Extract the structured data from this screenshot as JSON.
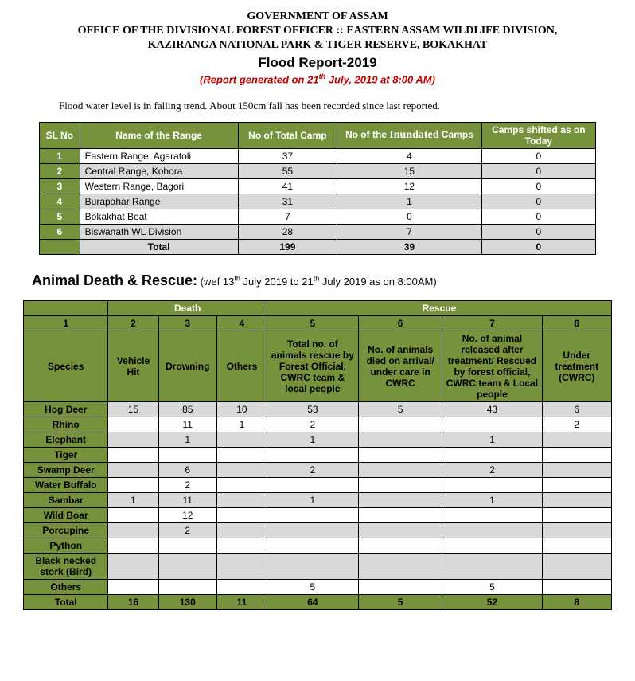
{
  "header": {
    "line1": "GOVERNMENT OF ASSAM",
    "line2": "OFFICE OF THE DIVISIONAL FOREST OFFICER :: EASTERN ASSAM WILDLIFE DIVISION,",
    "line3": "KAZIRANGA NATIONAL PARK & TIGER RESERVE, BOKAKHAT",
    "title": "Flood Report-2019",
    "subtitle_pre": "(Report generated on 21",
    "subtitle_sup": "th",
    "subtitle_post": " July, 2019 at 8:00 AM)"
  },
  "status": "Flood water level is in falling trend. About 150cm fall has been recorded since last reported.",
  "camp": {
    "headers": {
      "sl": "SL No",
      "name": "Name of the Range",
      "total": "No of Total Camp",
      "inundated_pre": "No of the ",
      "inundated_b": "Inundated",
      "inundated_post": " Camps",
      "shifted": "Camps shifted as on Today"
    },
    "rows": [
      {
        "sl": "1",
        "name": "Eastern Range, Agaratoli",
        "total": "37",
        "inun": "4",
        "shift": "0"
      },
      {
        "sl": "2",
        "name": "Central Range, Kohora",
        "total": "55",
        "inun": "15",
        "shift": "0"
      },
      {
        "sl": "3",
        "name": "Western Range, Bagori",
        "total": "41",
        "inun": "12",
        "shift": "0"
      },
      {
        "sl": "4",
        "name": "Burapahar Range",
        "total": "31",
        "inun": "1",
        "shift": "0"
      },
      {
        "sl": "5",
        "name": "Bokakhat Beat",
        "total": "7",
        "inun": "0",
        "shift": "0"
      },
      {
        "sl": "6",
        "name": "Biswanath WL Division",
        "total": "28",
        "inun": "7",
        "shift": "0"
      }
    ],
    "total": {
      "label": "Total",
      "total": "199",
      "inun": "39",
      "shift": "0"
    }
  },
  "section": {
    "title": "Animal Death & Rescue:",
    "sub_pre": " (wef 13",
    "sub_sup1": "th",
    "sub_mid": " July 2019 to 21",
    "sub_sup2": "th",
    "sub_post": " July 2019 as on 8:00AM)"
  },
  "animal": {
    "group_headers": {
      "blank": "",
      "death": "Death",
      "rescue": "Rescue"
    },
    "col_nums": [
      "1",
      "2",
      "3",
      "4",
      "5",
      "6",
      "7",
      "8"
    ],
    "col_labels": {
      "species": "Species",
      "vehicle": "Vehicle Hit",
      "drowning": "Drowning",
      "others": "Others",
      "rescue_total": "Total no. of animals rescue by Forest Official, CWRC team & local people",
      "died_care": "No. of animals died on arrival/ under care in CWRC",
      "released": "No. of animal released after treatment/ Rescued by forest official, CWRC team & Local people",
      "under_treat": "Under treatment (CWRC)"
    },
    "rows": [
      {
        "species": "Hog Deer",
        "v": "15",
        "d": "85",
        "o": "10",
        "r": "53",
        "dc": "5",
        "rel": "43",
        "ut": "6"
      },
      {
        "species": "Rhino",
        "v": "",
        "d": "11",
        "o": "1",
        "r": "2",
        "dc": "",
        "rel": "",
        "ut": "2"
      },
      {
        "species": "Elephant",
        "v": "",
        "d": "1",
        "o": "",
        "r": "1",
        "dc": "",
        "rel": "1",
        "ut": ""
      },
      {
        "species": "Tiger",
        "v": "",
        "d": "",
        "o": "",
        "r": "",
        "dc": "",
        "rel": "",
        "ut": ""
      },
      {
        "species": "Swamp Deer",
        "v": "",
        "d": "6",
        "o": "",
        "r": "2",
        "dc": "",
        "rel": "2",
        "ut": ""
      },
      {
        "species": "Water Buffalo",
        "v": "",
        "d": "2",
        "o": "",
        "r": "",
        "dc": "",
        "rel": "",
        "ut": ""
      },
      {
        "species": "Sambar",
        "v": "1",
        "d": "11",
        "o": "",
        "r": "1",
        "dc": "",
        "rel": "1",
        "ut": ""
      },
      {
        "species": "Wild Boar",
        "v": "",
        "d": "12",
        "o": "",
        "r": "",
        "dc": "",
        "rel": "",
        "ut": ""
      },
      {
        "species": "Porcupine",
        "v": "",
        "d": "2",
        "o": "",
        "r": "",
        "dc": "",
        "rel": "",
        "ut": ""
      },
      {
        "species": "Python",
        "v": "",
        "d": "",
        "o": "",
        "r": "",
        "dc": "",
        "rel": "",
        "ut": ""
      },
      {
        "species": "Black necked stork (Bird)",
        "v": "",
        "d": "",
        "o": "",
        "r": "",
        "dc": "",
        "rel": "",
        "ut": ""
      },
      {
        "species": "Others",
        "v": "",
        "d": "",
        "o": "",
        "r": "5",
        "dc": "",
        "rel": "5",
        "ut": ""
      }
    ],
    "total": {
      "label": "Total",
      "v": "16",
      "d": "130",
      "o": "11",
      "r": "64",
      "dc": "5",
      "rel": "52",
      "ut": "8"
    }
  },
  "style": {
    "green": "#76923c",
    "grey": "#d9d9d9",
    "red": "#c00000"
  }
}
